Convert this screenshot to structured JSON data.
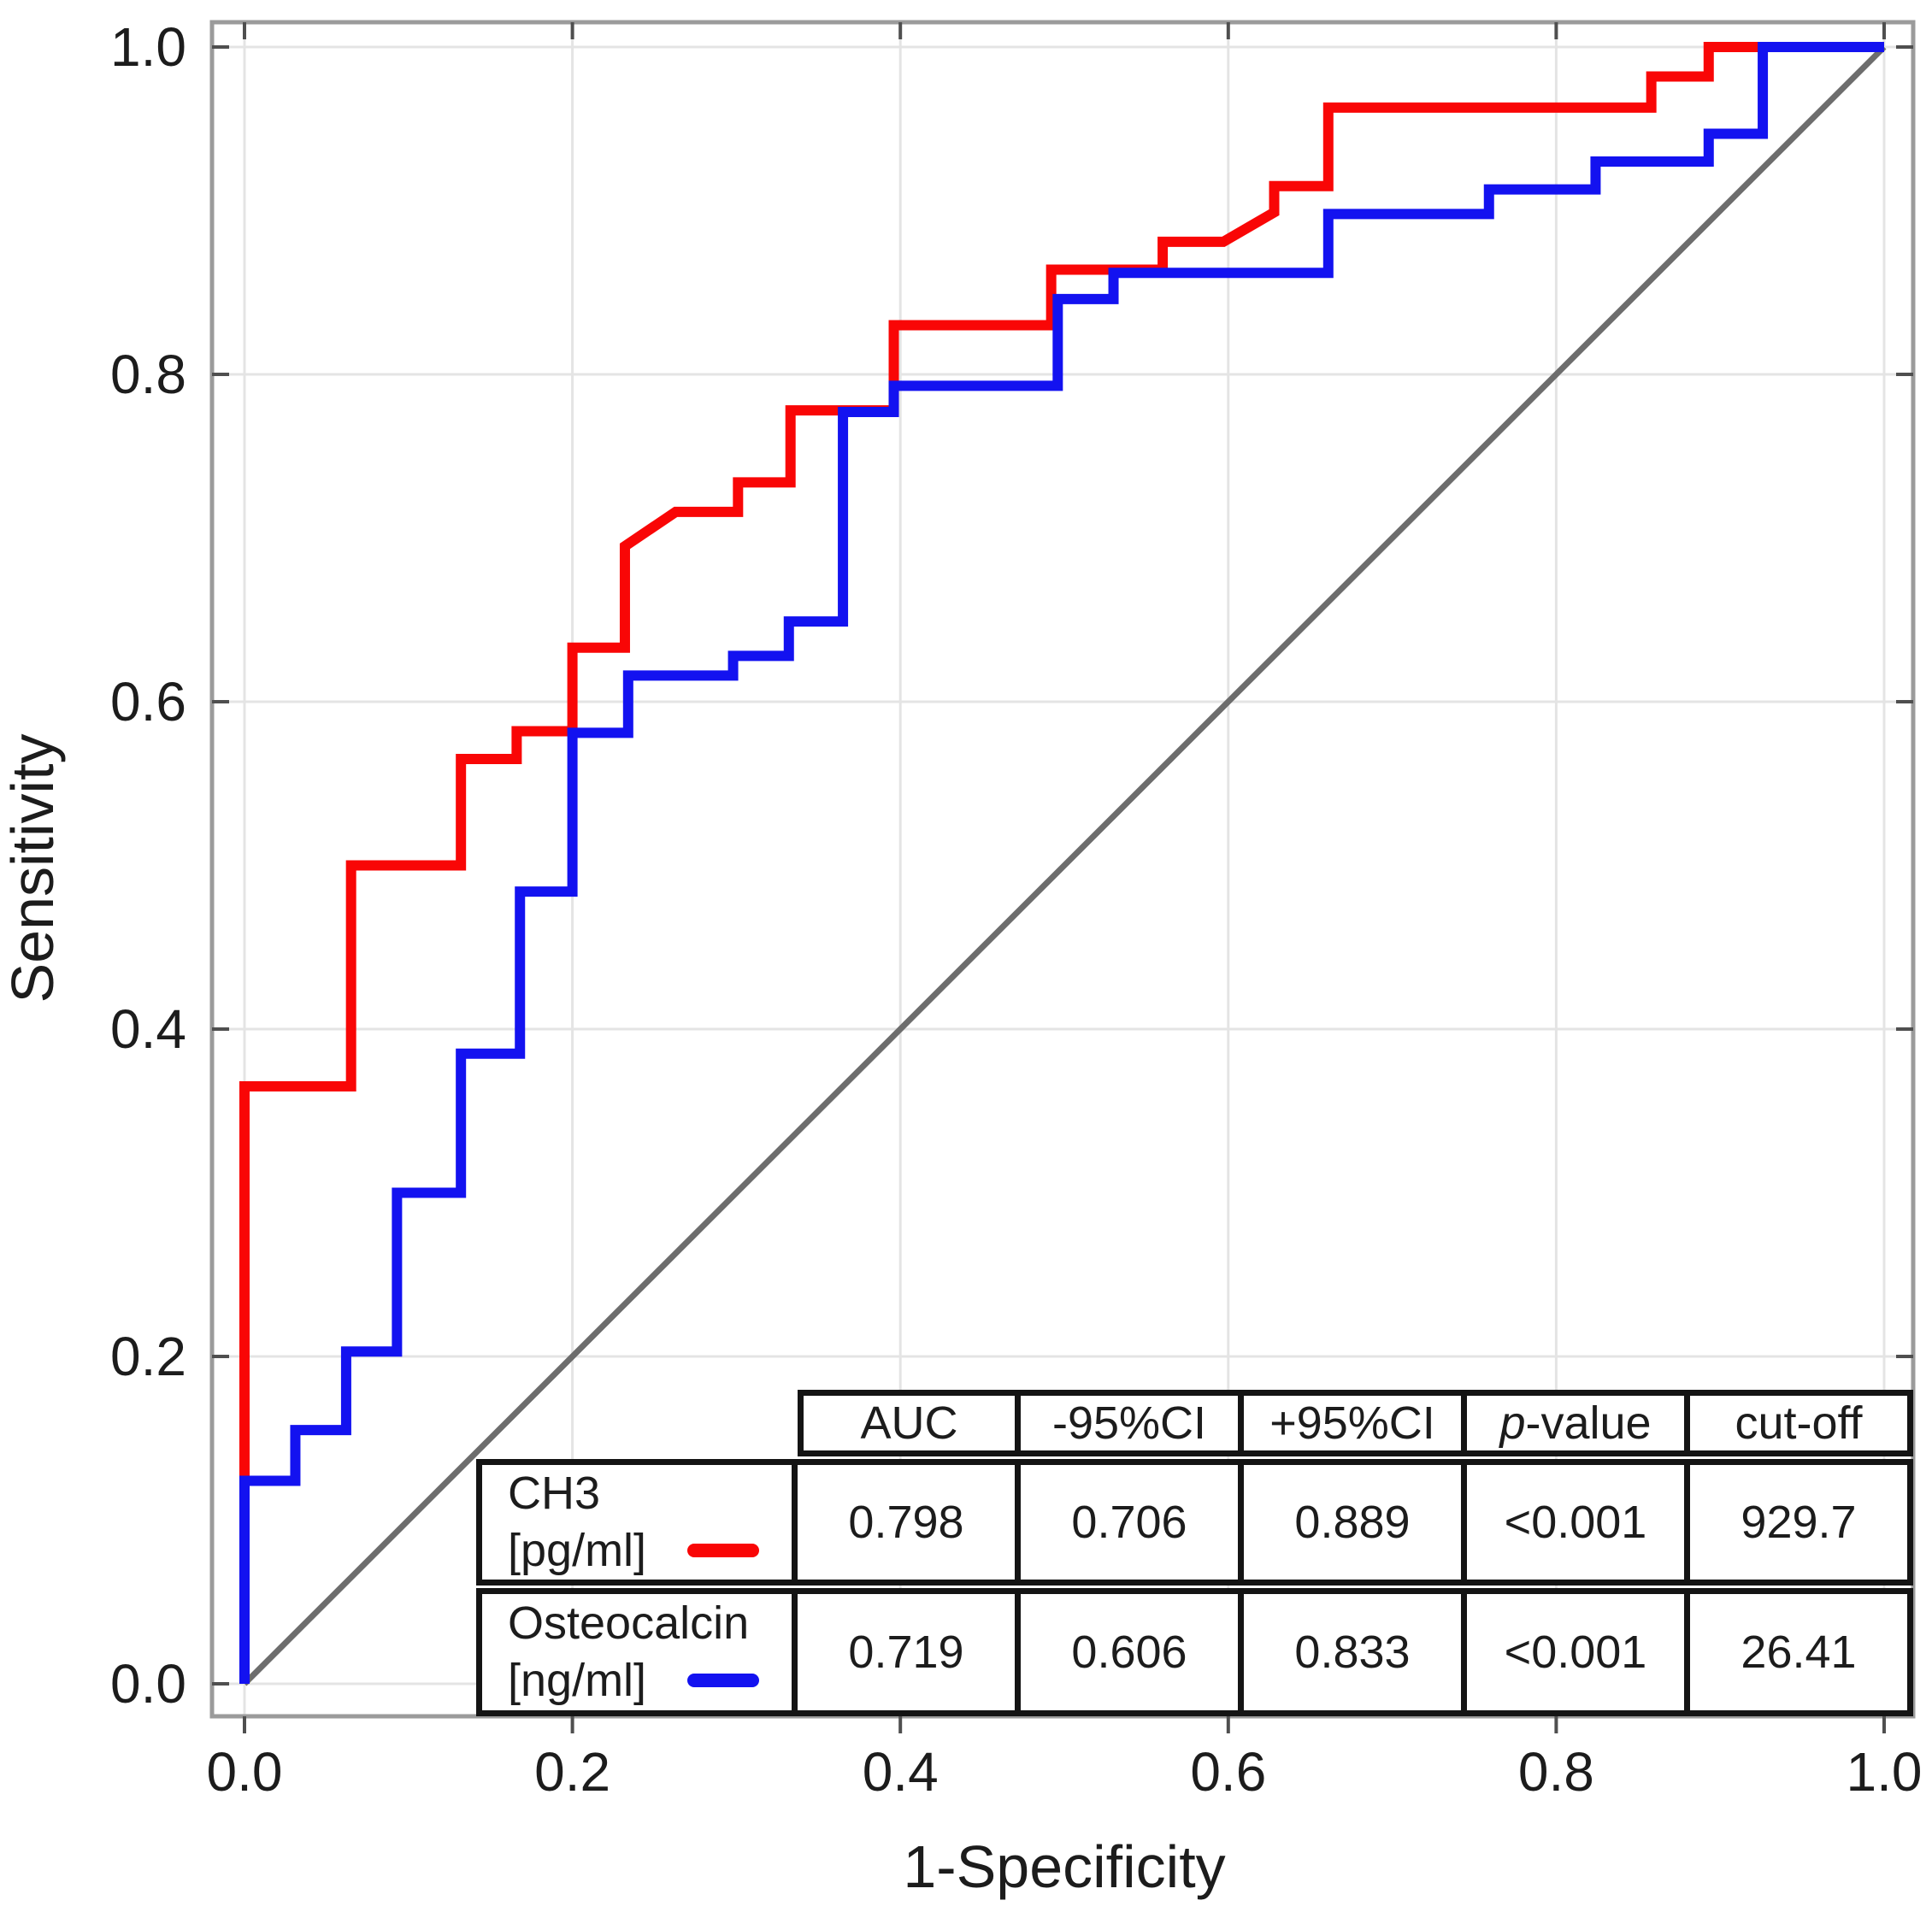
{
  "chart_data": {
    "type": "line",
    "subtype": "roc-step-curves",
    "title": "",
    "xlabel": "1-Specificity",
    "ylabel": "Sensitivity",
    "xlim": [
      0,
      1
    ],
    "ylim": [
      0,
      1
    ],
    "xticks": [
      "0.0",
      "0.2",
      "0.4",
      "0.6",
      "0.8",
      "1.0"
    ],
    "yticks": [
      "0.0",
      "0.2",
      "0.4",
      "0.6",
      "0.8",
      "1.0"
    ],
    "grid": true,
    "colors": {
      "grid": "#e4e4e4",
      "frame": "#9b9b9b",
      "tick": "#4f4f4f",
      "text": "#1c1c1c"
    },
    "series": [
      {
        "name": "CH3 [pg/ml]",
        "color": "#f90606",
        "stroke_width": 12,
        "points": [
          [
            0,
            0
          ],
          [
            0,
            0.365
          ],
          [
            0.065,
            0.365
          ],
          [
            0.065,
            0.5
          ],
          [
            0.132,
            0.5
          ],
          [
            0.132,
            0.565
          ],
          [
            0.166,
            0.565
          ],
          [
            0.166,
            0.582
          ],
          [
            0.2,
            0.582
          ],
          [
            0.2,
            0.633
          ],
          [
            0.232,
            0.633
          ],
          [
            0.232,
            0.695
          ],
          [
            0.263,
            0.716
          ],
          [
            0.301,
            0.716
          ],
          [
            0.301,
            0.734
          ],
          [
            0.333,
            0.734
          ],
          [
            0.333,
            0.778
          ],
          [
            0.396,
            0.778
          ],
          [
            0.396,
            0.83
          ],
          [
            0.492,
            0.83
          ],
          [
            0.492,
            0.864
          ],
          [
            0.56,
            0.864
          ],
          [
            0.56,
            0.881
          ],
          [
            0.597,
            0.881
          ],
          [
            0.628,
            0.899
          ],
          [
            0.628,
            0.915
          ],
          [
            0.661,
            0.915
          ],
          [
            0.661,
            0.963
          ],
          [
            0.858,
            0.963
          ],
          [
            0.858,
            0.982
          ],
          [
            0.893,
            0.982
          ],
          [
            0.893,
            1
          ],
          [
            1,
            1
          ]
        ]
      },
      {
        "name": "Osteocalcin [ng/ml]",
        "color": "#1312f0",
        "stroke_width": 12,
        "points": [
          [
            0,
            0
          ],
          [
            0,
            0.124
          ],
          [
            0.031,
            0.124
          ],
          [
            0.031,
            0.155
          ],
          [
            0.062,
            0.155
          ],
          [
            0.062,
            0.203
          ],
          [
            0.093,
            0.203
          ],
          [
            0.093,
            0.3
          ],
          [
            0.132,
            0.3
          ],
          [
            0.132,
            0.385
          ],
          [
            0.168,
            0.385
          ],
          [
            0.168,
            0.484
          ],
          [
            0.2,
            0.484
          ],
          [
            0.2,
            0.581
          ],
          [
            0.234,
            0.581
          ],
          [
            0.234,
            0.616
          ],
          [
            0.298,
            0.616
          ],
          [
            0.298,
            0.628
          ],
          [
            0.332,
            0.628
          ],
          [
            0.332,
            0.649
          ],
          [
            0.365,
            0.649
          ],
          [
            0.365,
            0.777
          ],
          [
            0.396,
            0.777
          ],
          [
            0.396,
            0.793
          ],
          [
            0.496,
            0.793
          ],
          [
            0.496,
            0.846
          ],
          [
            0.53,
            0.846
          ],
          [
            0.53,
            0.862
          ],
          [
            0.661,
            0.862
          ],
          [
            0.661,
            0.898
          ],
          [
            0.759,
            0.898
          ],
          [
            0.759,
            0.913
          ],
          [
            0.824,
            0.913
          ],
          [
            0.824,
            0.93
          ],
          [
            0.893,
            0.93
          ],
          [
            0.893,
            0.947
          ],
          [
            0.926,
            0.947
          ],
          [
            0.926,
            1
          ],
          [
            1,
            1
          ]
        ]
      },
      {
        "name": "reference diagonal",
        "color": "#6d6d6d",
        "stroke_width": 7,
        "points": [
          [
            0,
            0
          ],
          [
            1,
            1
          ]
        ]
      }
    ]
  },
  "table": {
    "headers": [
      "AUC",
      "-95%CI",
      "+95%CI",
      "p-value",
      "cut-off"
    ],
    "rows": [
      {
        "label_line1": "CH3",
        "label_line2": "[pg/ml]",
        "swatch_color": "#f90606",
        "values": [
          "0.798",
          "0.706",
          "0.889",
          "<0.001",
          "929.7"
        ]
      },
      {
        "label_line1": "Osteocalcin",
        "label_line2": "[ng/ml]",
        "swatch_color": "#1312f0",
        "values": [
          "0.719",
          "0.606",
          "0.833",
          "<0.001",
          "26.41"
        ]
      }
    ]
  }
}
